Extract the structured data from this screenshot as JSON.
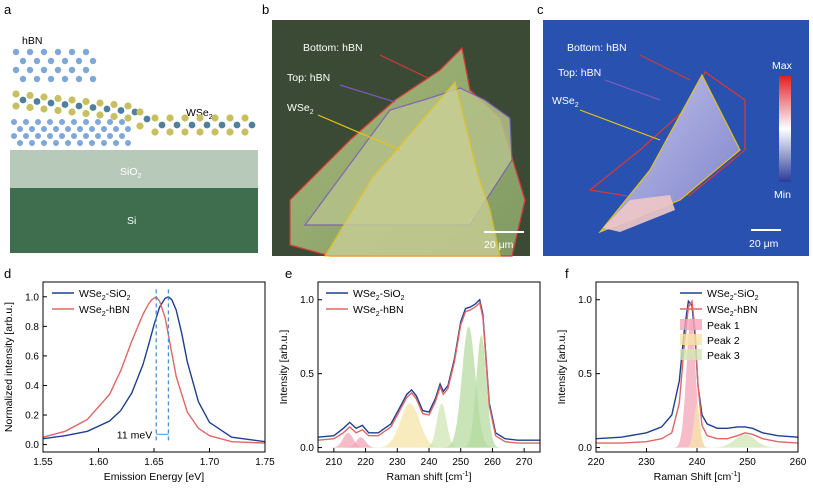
{
  "panels": {
    "a": {
      "letter": "a",
      "labels": {
        "hbn": "hBN",
        "wse2": "WSe",
        "wse2_sub": "2",
        "sio2": "SiO",
        "sio2_sub": "2",
        "si": "Si"
      }
    },
    "b": {
      "letter": "b",
      "labels": {
        "bottom": "Bottom: hBN",
        "top": "Top: hBN",
        "wse2": "WSe",
        "wse2_sub": "2"
      },
      "scalebar": "20 μm"
    },
    "c": {
      "letter": "c",
      "labels": {
        "bottom": "Bottom: hBN",
        "top": "Top: hBN",
        "wse2": "WSe",
        "wse2_sub": "2"
      },
      "scalebar": "20 μm",
      "colorbar": {
        "max": "Max",
        "min": "Min"
      }
    }
  },
  "chart_data": [
    {
      "panel": "d",
      "type": "line",
      "xlabel": "Emission Energy [eV]",
      "ylabel": "Normalized intensity [arb.u.]",
      "xlim": [
        1.55,
        1.75
      ],
      "ylim": [
        -0.05,
        1.1
      ],
      "xticks": [
        "1.55",
        "1.60",
        "1.65",
        "1.70",
        "1.75"
      ],
      "yticks": [
        "0.0",
        "0.2",
        "0.4",
        "0.6",
        "0.8",
        "1.0"
      ],
      "annotation": "11 meV",
      "series": [
        {
          "name": "WSe2-SiO2",
          "name_main": "WSe",
          "name_sub1": "2",
          "name_rest": "-SiO",
          "name_sub2": "2",
          "color": "#1f3f8f",
          "x": [
            1.55,
            1.57,
            1.59,
            1.61,
            1.62,
            1.63,
            1.64,
            1.645,
            1.65,
            1.655,
            1.66,
            1.663,
            1.666,
            1.67,
            1.675,
            1.68,
            1.69,
            1.7,
            1.72,
            1.75
          ],
          "y": [
            0.04,
            0.06,
            0.09,
            0.16,
            0.23,
            0.35,
            0.54,
            0.67,
            0.81,
            0.93,
            0.99,
            1.0,
            0.98,
            0.91,
            0.75,
            0.56,
            0.29,
            0.15,
            0.05,
            0.02
          ]
        },
        {
          "name": "WSe2-hBN",
          "name_main": "WSe",
          "name_sub1": "2",
          "name_rest": "-hBN",
          "name_sub2": "",
          "color": "#e06666",
          "x": [
            1.55,
            1.57,
            1.59,
            1.61,
            1.62,
            1.63,
            1.64,
            1.645,
            1.648,
            1.652,
            1.655,
            1.66,
            1.665,
            1.67,
            1.68,
            1.69,
            1.7,
            1.72,
            1.75
          ],
          "y": [
            0.05,
            0.09,
            0.17,
            0.34,
            0.5,
            0.7,
            0.88,
            0.95,
            0.98,
            1.0,
            0.97,
            0.86,
            0.66,
            0.46,
            0.22,
            0.11,
            0.06,
            0.02,
            0.01
          ]
        }
      ]
    },
    {
      "panel": "e",
      "type": "line",
      "xlabel": "Raman shift [cm-1]",
      "xlabel_main": "Raman shift [cm",
      "xlabel_sup": "-1",
      "xlabel_end": "]",
      "ylabel": "Intensity [arb.u.]",
      "xlim": [
        205,
        275
      ],
      "ylim": [
        -0.03,
        1.12
      ],
      "xticks": [
        "210",
        "220",
        "230",
        "240",
        "250",
        "260",
        "270"
      ],
      "yticks": [
        "0.0",
        "0.5",
        "1.0"
      ],
      "series": [
        {
          "name": "WSe2-SiO2",
          "name_main": "WSe",
          "name_sub1": "2",
          "name_rest": "-SiO",
          "name_sub2": "2",
          "color": "#1f3f8f",
          "x": [
            205,
            210,
            213,
            215,
            217,
            219,
            221,
            224,
            228,
            231,
            233,
            234.5,
            236,
            238,
            240,
            242,
            243.5,
            244.5,
            246,
            248,
            250,
            251.5,
            253,
            254.5,
            256,
            257,
            258,
            259,
            261,
            264,
            268,
            275
          ],
          "y": [
            0.07,
            0.08,
            0.13,
            0.17,
            0.13,
            0.15,
            0.1,
            0.1,
            0.16,
            0.28,
            0.36,
            0.39,
            0.35,
            0.25,
            0.24,
            0.33,
            0.43,
            0.38,
            0.42,
            0.6,
            0.85,
            0.94,
            0.95,
            0.97,
            1.0,
            0.9,
            0.6,
            0.3,
            0.1,
            0.06,
            0.05,
            0.05
          ]
        },
        {
          "name": "WSe2-hBN",
          "name_main": "WSe",
          "name_sub1": "2",
          "name_rest": "-hBN",
          "name_sub2": "",
          "color": "#e06666",
          "x": [
            205,
            210,
            213,
            215,
            217,
            219,
            221,
            224,
            228,
            231,
            233,
            234.5,
            236,
            238,
            240,
            242,
            243.5,
            244.5,
            246,
            248,
            250,
            251.5,
            253,
            254.5,
            256,
            257,
            258,
            259,
            261,
            264,
            268,
            275
          ],
          "y": [
            0.05,
            0.06,
            0.1,
            0.14,
            0.1,
            0.12,
            0.08,
            0.08,
            0.14,
            0.26,
            0.34,
            0.37,
            0.33,
            0.23,
            0.22,
            0.31,
            0.41,
            0.36,
            0.4,
            0.58,
            0.83,
            0.92,
            0.93,
            0.95,
            0.98,
            0.88,
            0.58,
            0.28,
            0.08,
            0.04,
            0.03,
            0.03
          ]
        }
      ],
      "peaks": [
        {
          "center": 214.5,
          "height": 0.1,
          "width": 1.6,
          "color": "#f4a6b8"
        },
        {
          "center": 218.5,
          "height": 0.07,
          "width": 1.5,
          "color": "#f4a6b8"
        },
        {
          "center": 234,
          "height": 0.3,
          "width": 3.0,
          "color": "#f5e4a8"
        },
        {
          "center": 244,
          "height": 0.3,
          "width": 1.5,
          "color": "#cfe6b3"
        },
        {
          "center": 252.5,
          "height": 0.82,
          "width": 2.1,
          "color": "#b6dba0"
        },
        {
          "center": 256.5,
          "height": 0.76,
          "width": 1.6,
          "color": "#b6dba0"
        }
      ]
    },
    {
      "panel": "f",
      "type": "line",
      "xlabel": "Raman Shift [cm-1]",
      "xlabel_main": "Raman Shift [cm",
      "xlabel_sup": "-1",
      "xlabel_end": "]",
      "ylabel": "Intensity [arb.u.]",
      "xlim": [
        220,
        260
      ],
      "ylim": [
        -0.03,
        1.12
      ],
      "xticks": [
        "220",
        "230",
        "240",
        "250",
        "260"
      ],
      "yticks": [
        "0.0",
        "0.5",
        "1.0"
      ],
      "series": [
        {
          "name": "WSe2-SiO2",
          "name_main": "WSe",
          "name_sub1": "2",
          "name_rest": "-SiO",
          "name_sub2": "2",
          "color": "#1f3f8f",
          "x": [
            220,
            225,
            230,
            233,
            235,
            236.5,
            237.5,
            238.3,
            239,
            239.6,
            240.2,
            241,
            242,
            244,
            246,
            248,
            249.5,
            251,
            253,
            256,
            260
          ],
          "y": [
            0.06,
            0.07,
            0.1,
            0.14,
            0.22,
            0.45,
            0.8,
            0.99,
            0.96,
            0.75,
            0.42,
            0.22,
            0.16,
            0.13,
            0.13,
            0.14,
            0.14,
            0.13,
            0.1,
            0.08,
            0.07
          ]
        },
        {
          "name": "WSe2-hBN",
          "name_main": "WSe",
          "name_sub1": "2",
          "name_rest": "-hBN",
          "name_sub2": "",
          "color": "#e06666",
          "x": [
            220,
            225,
            230,
            233,
            235,
            236.5,
            237.5,
            238.3,
            239,
            239.6,
            240.2,
            241,
            242,
            244,
            246,
            248,
            249.5,
            251,
            253,
            256,
            260
          ],
          "y": [
            0.03,
            0.03,
            0.04,
            0.06,
            0.1,
            0.3,
            0.7,
            0.95,
            0.99,
            0.8,
            0.42,
            0.15,
            0.08,
            0.06,
            0.06,
            0.08,
            0.1,
            0.09,
            0.06,
            0.04,
            0.03
          ]
        }
      ],
      "legend_extra": [
        "Peak 1",
        "Peak 2",
        "Peak 3"
      ],
      "peaks": [
        {
          "center": 238.8,
          "height": 0.88,
          "width": 0.9,
          "color": "#f4a6b8"
        },
        {
          "center": 240,
          "height": 0.3,
          "width": 0.6,
          "color": "#f5e4a8"
        },
        {
          "center": 249.5,
          "height": 0.09,
          "width": 2.0,
          "color": "#cfe6b3"
        }
      ]
    }
  ]
}
